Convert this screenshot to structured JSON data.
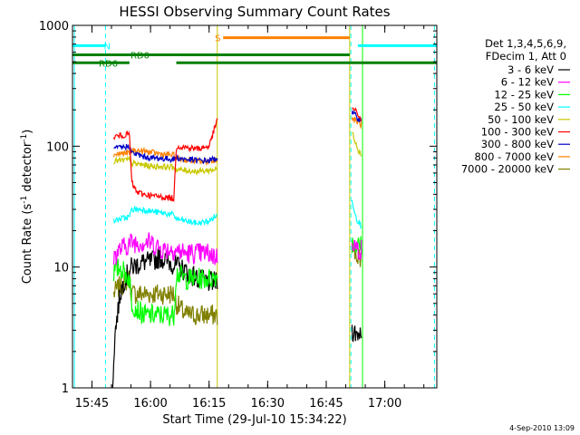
{
  "chart_data": {
    "type": "line",
    "title": "HESSI Observing Summary Count Rates",
    "xlabel": "Start Time (29-Jul-10 15:34:22)",
    "ylabel_main": "Count Rate (s",
    "ylabel_sup1": "-1",
    "ylabel_mid": " detector",
    "ylabel_sup2": "-1",
    "ylabel_end": ")",
    "y_scale": "log",
    "ylim": [
      1,
      1000
    ],
    "xlim": [
      15.667,
      17.222
    ],
    "yticks": [
      {
        "v": 1,
        "label": "1"
      },
      {
        "v": 10,
        "label": "10"
      },
      {
        "v": 100,
        "label": "100"
      },
      {
        "v": 1000,
        "label": "1000"
      }
    ],
    "xticks": [
      {
        "v": 15.75,
        "label": "15:45"
      },
      {
        "v": 16.0,
        "label": "16:00"
      },
      {
        "v": 16.25,
        "label": "16:15"
      },
      {
        "v": 16.5,
        "label": "16:30"
      },
      {
        "v": 16.75,
        "label": "16:45"
      },
      {
        "v": 17.0,
        "label": "17:00"
      }
    ],
    "footer_date": "4-Sep-2010 13:09",
    "legend_header": [
      "Det 1,3,4,5,6,9,",
      "FDecim 1, Att 0"
    ],
    "legend_position": "right",
    "series": [
      {
        "name": "3 - 6 keV",
        "color": "#000000",
        "segments": [
          [
            [
              15.838,
              1
            ],
            [
              15.843,
              1.8
            ],
            [
              15.85,
              3
            ],
            [
              15.87,
              6
            ],
            [
              15.89,
              8
            ],
            [
              15.92,
              10
            ],
            [
              15.97,
              11
            ],
            [
              16.0,
              11
            ],
            [
              16.04,
              12
            ],
            [
              16.08,
              11
            ],
            [
              16.12,
              10
            ],
            [
              16.16,
              9
            ],
            [
              16.2,
              8
            ],
            [
              16.24,
              7.5
            ],
            [
              16.285,
              7.5
            ]
          ],
          [
            [
              16.86,
              3
            ],
            [
              16.88,
              2.8
            ],
            [
              16.9,
              3
            ]
          ]
        ]
      },
      {
        "name": "6 - 12 keV",
        "color": "#ff00ff",
        "segments": [
          [
            [
              15.843,
              12
            ],
            [
              15.87,
              14
            ],
            [
              15.92,
              16
            ],
            [
              15.97,
              16
            ],
            [
              16.0,
              16
            ],
            [
              16.05,
              14
            ],
            [
              16.1,
              14
            ],
            [
              16.15,
              13
            ],
            [
              16.2,
              13
            ],
            [
              16.25,
              13
            ],
            [
              16.285,
              12
            ]
          ],
          [
            [
              16.86,
              17
            ],
            [
              16.88,
              14
            ],
            [
              16.9,
              14
            ]
          ]
        ]
      },
      {
        "name": "12 - 25 keV",
        "color": "#00ff00",
        "segments": [
          [
            [
              15.843,
              9
            ],
            [
              15.87,
              10
            ],
            [
              15.91,
              8
            ],
            [
              15.92,
              5
            ],
            [
              15.97,
              4
            ],
            [
              16.0,
              4
            ],
            [
              16.05,
              4
            ],
            [
              16.1,
              4
            ],
            [
              16.11,
              9
            ],
            [
              16.15,
              8
            ],
            [
              16.2,
              8
            ],
            [
              16.25,
              8
            ],
            [
              16.285,
              8.5
            ]
          ],
          [
            [
              16.86,
              16
            ],
            [
              16.88,
              15
            ],
            [
              16.9,
              15
            ]
          ]
        ]
      },
      {
        "name": "25 - 50 keV",
        "color": "#00ffff",
        "segments": [
          [
            [
              15.843,
              24
            ],
            [
              15.87,
              25
            ],
            [
              15.91,
              26
            ],
            [
              15.92,
              30
            ],
            [
              15.97,
              30
            ],
            [
              16.0,
              29
            ],
            [
              16.05,
              28
            ],
            [
              16.1,
              27
            ],
            [
              16.11,
              25
            ],
            [
              16.15,
              24
            ],
            [
              16.2,
              23
            ],
            [
              16.25,
              24
            ],
            [
              16.285,
              27
            ]
          ],
          [
            [
              16.86,
              35
            ],
            [
              16.87,
              30
            ],
            [
              16.88,
              25
            ],
            [
              16.9,
              22
            ]
          ]
        ]
      },
      {
        "name": "50 - 100 keV",
        "color": "#c8c800",
        "segments": [
          [
            [
              15.843,
              75
            ],
            [
              15.87,
              76
            ],
            [
              15.91,
              77
            ],
            [
              15.92,
              72
            ],
            [
              15.97,
              70
            ],
            [
              16.0,
              68
            ],
            [
              16.05,
              68
            ],
            [
              16.1,
              67
            ],
            [
              16.11,
              64
            ],
            [
              16.15,
              63
            ],
            [
              16.2,
              62
            ],
            [
              16.25,
              63
            ],
            [
              16.285,
              65
            ]
          ],
          [
            [
              16.86,
              130
            ],
            [
              16.875,
              110
            ],
            [
              16.89,
              90
            ],
            [
              16.9,
              85
            ]
          ]
        ]
      },
      {
        "name": "100 - 300 keV",
        "color": "#ff0000",
        "segments": [
          [
            [
              15.843,
              120
            ],
            [
              15.87,
              122
            ],
            [
              15.91,
              126
            ],
            [
              15.92,
              50
            ],
            [
              15.94,
              42
            ],
            [
              15.97,
              40
            ],
            [
              16.0,
              39
            ],
            [
              16.05,
              38
            ],
            [
              16.1,
              37
            ],
            [
              16.11,
              100
            ],
            [
              16.15,
              98
            ],
            [
              16.2,
              95
            ],
            [
              16.25,
              100
            ],
            [
              16.285,
              165
            ]
          ],
          [
            [
              16.86,
              210
            ],
            [
              16.88,
              190
            ],
            [
              16.9,
              165
            ]
          ]
        ]
      },
      {
        "name": "300 - 800 keV",
        "color": "#0000c8",
        "segments": [
          [
            [
              15.843,
              95
            ],
            [
              15.87,
              97
            ],
            [
              15.91,
              100
            ],
            [
              15.92,
              88
            ],
            [
              15.97,
              82
            ],
            [
              16.0,
              80
            ],
            [
              16.05,
              79
            ],
            [
              16.1,
              78
            ],
            [
              16.11,
              80
            ],
            [
              16.15,
              78
            ],
            [
              16.2,
              76
            ],
            [
              16.25,
              76
            ],
            [
              16.285,
              80
            ]
          ],
          [
            [
              16.86,
              190
            ],
            [
              16.88,
              175
            ],
            [
              16.9,
              160
            ]
          ]
        ]
      },
      {
        "name": "800 - 7000 keV",
        "color": "#ff8000",
        "segments": [
          [
            [
              15.843,
              85
            ],
            [
              15.87,
              87
            ],
            [
              15.91,
              88
            ],
            [
              15.92,
              92
            ],
            [
              15.97,
              91
            ],
            [
              16.0,
              89
            ],
            [
              16.05,
              86
            ],
            [
              16.1,
              84
            ],
            [
              16.11,
              79
            ],
            [
              16.15,
              77
            ],
            [
              16.2,
              75
            ],
            [
              16.25,
              75
            ],
            [
              16.285,
              78
            ]
          ],
          [
            [
              16.86,
              170
            ],
            [
              16.88,
              160
            ],
            [
              16.9,
              150
            ]
          ]
        ]
      },
      {
        "name": "7000 - 20000 keV",
        "color": "#808000",
        "segments": [
          [
            [
              15.843,
              6
            ],
            [
              15.87,
              7
            ],
            [
              15.91,
              8
            ],
            [
              15.92,
              6
            ],
            [
              15.97,
              6
            ],
            [
              16.0,
              6
            ],
            [
              16.05,
              6
            ],
            [
              16.1,
              6
            ],
            [
              16.11,
              5
            ],
            [
              16.15,
              4
            ],
            [
              16.2,
              4
            ],
            [
              16.25,
              4
            ],
            [
              16.285,
              4
            ]
          ],
          [
            [
              16.86,
              14
            ],
            [
              16.88,
              13
            ],
            [
              16.9,
              12
            ]
          ]
        ]
      }
    ],
    "state_bars": [
      {
        "label": "N",
        "color": "#00ffff",
        "segments": [
          [
            15.667,
            15.808
          ],
          [
            16.885,
            17.222
          ]
        ],
        "level": 680,
        "label_x": 15.815
      },
      {
        "label": "S",
        "color": "#ff8000",
        "segments": [
          [
            16.31,
            16.85
          ]
        ],
        "level": 790,
        "label_x": 16.287
      },
      {
        "label": "RD0",
        "color": "#008000",
        "segments": [
          [
            15.667,
            16.85
          ]
        ],
        "level": 570,
        "label_x": 15.955
      },
      {
        "label": "RD6",
        "color": "#008000",
        "segments": [
          [
            15.667,
            15.91
          ],
          [
            16.11,
            17.222
          ]
        ],
        "level": 490,
        "label_x": 15.82
      }
    ],
    "vertical_lines": [
      {
        "x": 15.675,
        "color": "#00ffff",
        "style": "solid"
      },
      {
        "x": 15.808,
        "color": "#00ffff",
        "style": "dashed"
      },
      {
        "x": 16.285,
        "color": "#c8c800",
        "style": "solid"
      },
      {
        "x": 16.85,
        "color": "#c8c800",
        "style": "solid"
      },
      {
        "x": 16.855,
        "color": "#00ffff",
        "style": "dashed"
      },
      {
        "x": 16.905,
        "color": "#00ff00",
        "style": "solid"
      },
      {
        "x": 17.212,
        "color": "#00ffff",
        "style": "dashed"
      }
    ]
  }
}
